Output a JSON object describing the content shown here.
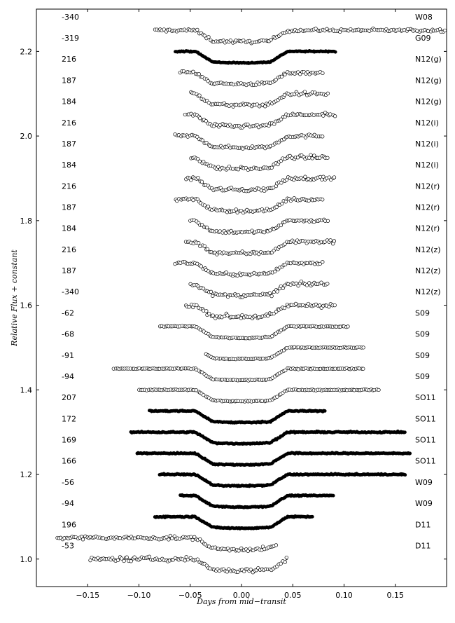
{
  "chart_data": {
    "type": "scatter",
    "title": "",
    "xlabel": "Days from mid−transit",
    "ylabel": "Relative Flux + constant",
    "xlim": [
      -0.2,
      0.2
    ],
    "ylim": [
      0.935,
      2.3
    ],
    "grid": false,
    "x_ticks": [
      "−0.15",
      "−0.10",
      "−0.05",
      "0.00",
      "0.05",
      "0.10",
      "0.15"
    ],
    "x_tick_values": [
      -0.15,
      -0.1,
      -0.05,
      0.0,
      0.05,
      0.1,
      0.15
    ],
    "y_ticks": [
      "1.0",
      "1.2",
      "1.4",
      "1.6",
      "1.8",
      "2.0",
      "2.2"
    ],
    "y_tick_values": [
      1.0,
      1.2,
      1.4,
      1.6,
      1.8,
      2.0,
      2.2
    ],
    "series": [
      {
        "epoch": "-340",
        "source": "W08",
        "offset": 2.25,
        "x_start": -0.085,
        "x_end": 0.2,
        "depth": 0.025,
        "marker": "open",
        "scatter": 0.0025
      },
      {
        "epoch": "-319",
        "source": "G09",
        "offset": 2.2,
        "x_start": -0.065,
        "x_end": 0.092,
        "depth": 0.025,
        "marker": "filled",
        "scatter": 0.0008
      },
      {
        "epoch": "216",
        "source": "N12(g)",
        "offset": 2.15,
        "x_start": -0.06,
        "x_end": 0.08,
        "depth": 0.025,
        "marker": "open",
        "scatter": 0.0025
      },
      {
        "epoch": "187",
        "source": "N12(g)",
        "offset": 2.1,
        "x_start": -0.05,
        "x_end": 0.085,
        "depth": 0.025,
        "marker": "open",
        "scatter": 0.003
      },
      {
        "epoch": "184",
        "source": "N12(g)",
        "offset": 2.05,
        "x_start": -0.055,
        "x_end": 0.092,
        "depth": 0.025,
        "marker": "open",
        "scatter": 0.003
      },
      {
        "epoch": "216",
        "source": "N12(i)",
        "offset": 2.0,
        "x_start": -0.065,
        "x_end": 0.08,
        "depth": 0.025,
        "marker": "open",
        "scatter": 0.0025
      },
      {
        "epoch": "187",
        "source": "N12(i)",
        "offset": 1.95,
        "x_start": -0.05,
        "x_end": 0.085,
        "depth": 0.025,
        "marker": "open",
        "scatter": 0.003
      },
      {
        "epoch": "184",
        "source": "N12(i)",
        "offset": 1.9,
        "x_start": -0.055,
        "x_end": 0.092,
        "depth": 0.025,
        "marker": "open",
        "scatter": 0.003
      },
      {
        "epoch": "216",
        "source": "N12(r)",
        "offset": 1.85,
        "x_start": -0.065,
        "x_end": 0.08,
        "depth": 0.025,
        "marker": "open",
        "scatter": 0.0025
      },
      {
        "epoch": "187",
        "source": "N12(r)",
        "offset": 1.8,
        "x_start": -0.05,
        "x_end": 0.085,
        "depth": 0.025,
        "marker": "open",
        "scatter": 0.0025
      },
      {
        "epoch": "184",
        "source": "N12(r)",
        "offset": 1.75,
        "x_start": -0.055,
        "x_end": 0.092,
        "depth": 0.025,
        "marker": "open",
        "scatter": 0.003
      },
      {
        "epoch": "216",
        "source": "N12(z)",
        "offset": 1.7,
        "x_start": -0.065,
        "x_end": 0.08,
        "depth": 0.025,
        "marker": "open",
        "scatter": 0.0025
      },
      {
        "epoch": "187",
        "source": "N12(z)",
        "offset": 1.65,
        "x_start": -0.05,
        "x_end": 0.085,
        "depth": 0.025,
        "marker": "open",
        "scatter": 0.003
      },
      {
        "epoch": "-340",
        "source": "N12(z)",
        "offset": 1.6,
        "x_start": -0.055,
        "x_end": 0.092,
        "depth": 0.025,
        "marker": "open",
        "scatter": 0.0035
      },
      {
        "epoch": "-62",
        "source": "S09",
        "offset": 1.55,
        "x_start": -0.08,
        "x_end": 0.105,
        "depth": 0.025,
        "marker": "open",
        "scatter": 0.0008
      },
      {
        "epoch": "-68",
        "source": "S09",
        "offset": 1.5,
        "x_start": -0.035,
        "x_end": 0.12,
        "depth": 0.025,
        "marker": "open",
        "scatter": 0.0008
      },
      {
        "epoch": "-91",
        "source": "S09",
        "offset": 1.45,
        "x_start": -0.125,
        "x_end": 0.12,
        "depth": 0.025,
        "marker": "open",
        "scatter": 0.0008
      },
      {
        "epoch": "-94",
        "source": "S09",
        "offset": 1.4,
        "x_start": -0.1,
        "x_end": 0.135,
        "depth": 0.025,
        "marker": "open",
        "scatter": 0.0008
      },
      {
        "epoch": "207",
        "source": "SO11",
        "offset": 1.35,
        "x_start": -0.09,
        "x_end": 0.082,
        "depth": 0.025,
        "marker": "filled",
        "scatter": 0.001
      },
      {
        "epoch": "172",
        "source": "SO11",
        "offset": 1.3,
        "x_start": -0.108,
        "x_end": 0.16,
        "depth": 0.025,
        "marker": "filled",
        "scatter": 0.001
      },
      {
        "epoch": "169",
        "source": "SO11",
        "offset": 1.25,
        "x_start": -0.102,
        "x_end": 0.165,
        "depth": 0.025,
        "marker": "filled",
        "scatter": 0.001
      },
      {
        "epoch": "166",
        "source": "SO11",
        "offset": 1.2,
        "x_start": -0.08,
        "x_end": 0.16,
        "depth": 0.025,
        "marker": "filled",
        "scatter": 0.001
      },
      {
        "epoch": "-56",
        "source": "W09",
        "offset": 1.15,
        "x_start": -0.06,
        "x_end": 0.09,
        "depth": 0.025,
        "marker": "filled",
        "scatter": 0.001
      },
      {
        "epoch": "-94",
        "source": "W09",
        "offset": 1.1,
        "x_start": -0.085,
        "x_end": 0.07,
        "depth": 0.025,
        "marker": "filled",
        "scatter": 0.001
      },
      {
        "epoch": "196",
        "source": "D11",
        "offset": 1.05,
        "x_start": -0.18,
        "x_end": 0.035,
        "depth": 0.025,
        "marker": "open",
        "scatter": 0.003
      },
      {
        "epoch": "-53",
        "source": "D11",
        "offset": 1.0,
        "x_start": -0.148,
        "x_end": 0.045,
        "depth": 0.025,
        "marker": "open",
        "scatter": 0.0035
      }
    ]
  }
}
